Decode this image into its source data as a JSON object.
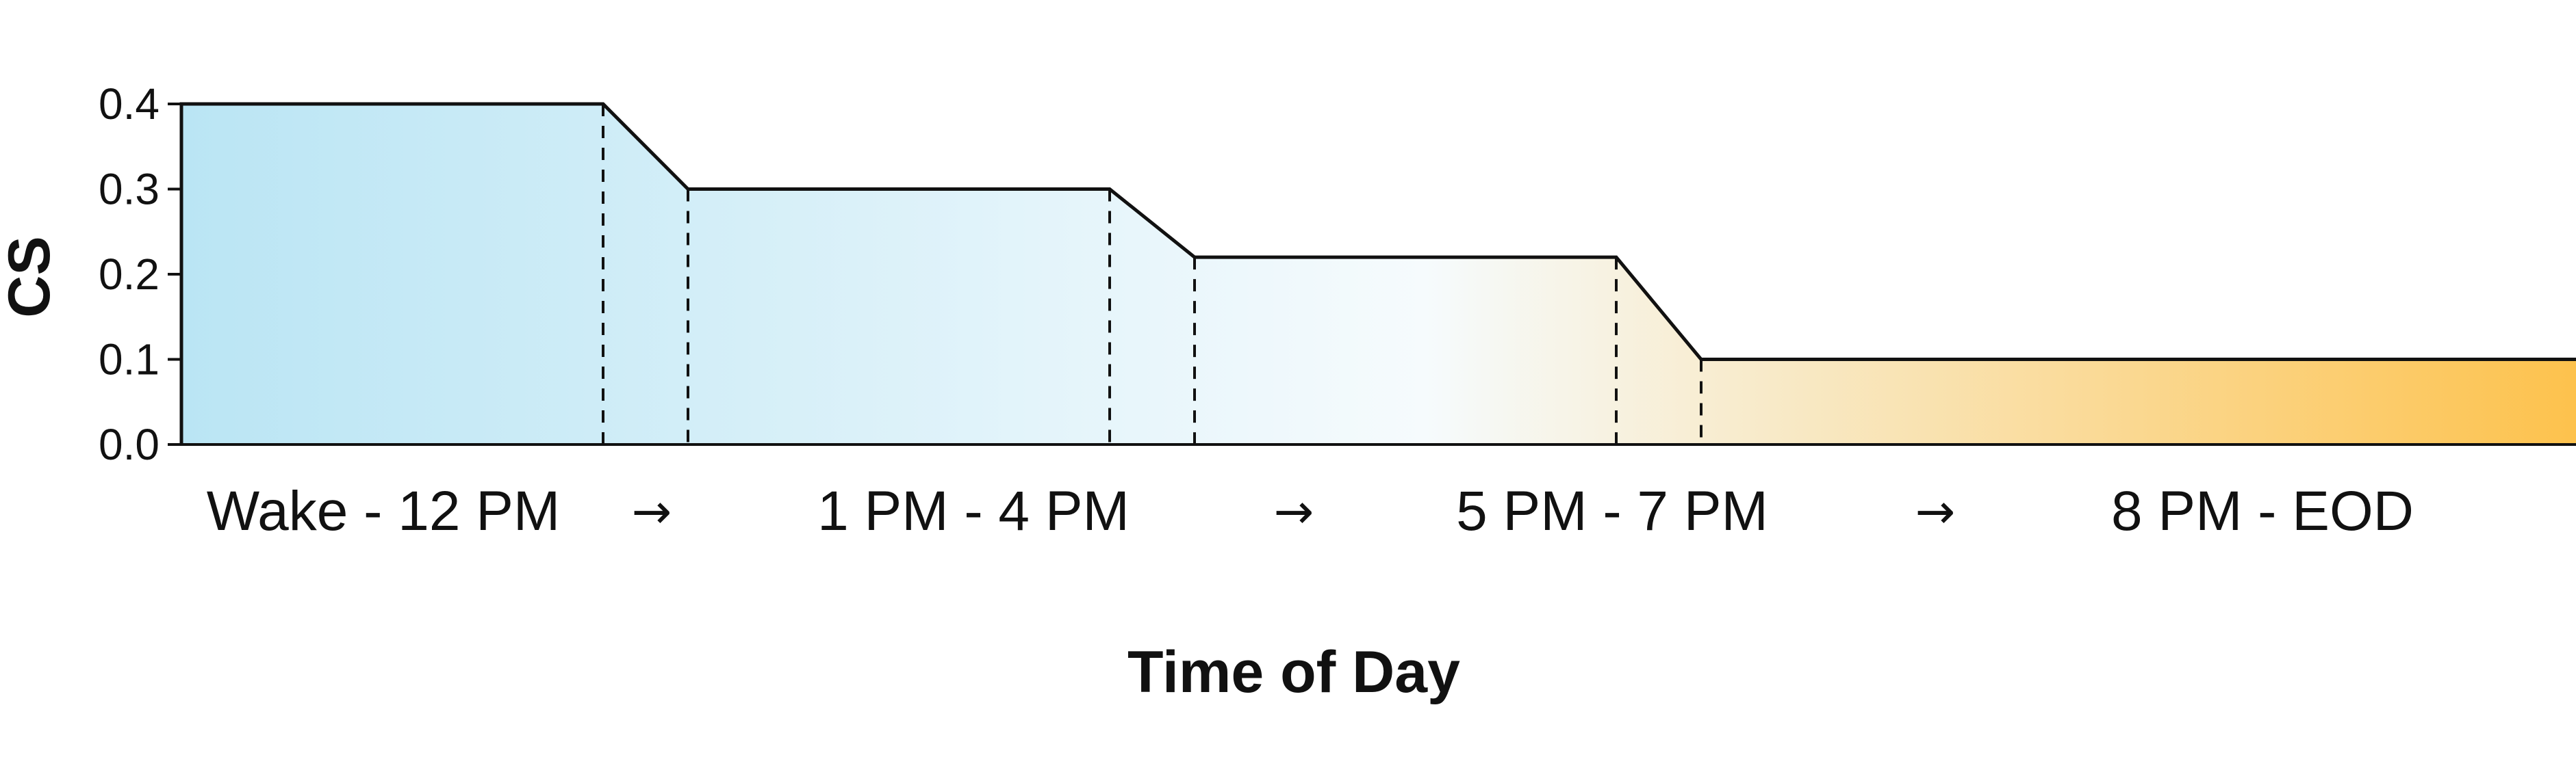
{
  "chart_data": {
    "type": "area",
    "xlabel": "Time of Day",
    "ylabel": "CS",
    "ylim": [
      0.0,
      0.4
    ],
    "yticks": [
      "0.0",
      "0.1",
      "0.2",
      "0.3",
      "0.4"
    ],
    "grid": false,
    "legend": "none",
    "categories": [
      "Wake - 12 PM",
      "1 PM - 4 PM",
      "5 PM - 7 PM",
      "8 PM - EOD"
    ],
    "values": [
      0.4,
      0.3,
      0.22,
      0.1
    ],
    "arrow_glyph": "→",
    "colors": {
      "start": "#bae5f4",
      "middle": "#f6fbfd",
      "end": "#fdc24d",
      "line": "#111111"
    }
  }
}
